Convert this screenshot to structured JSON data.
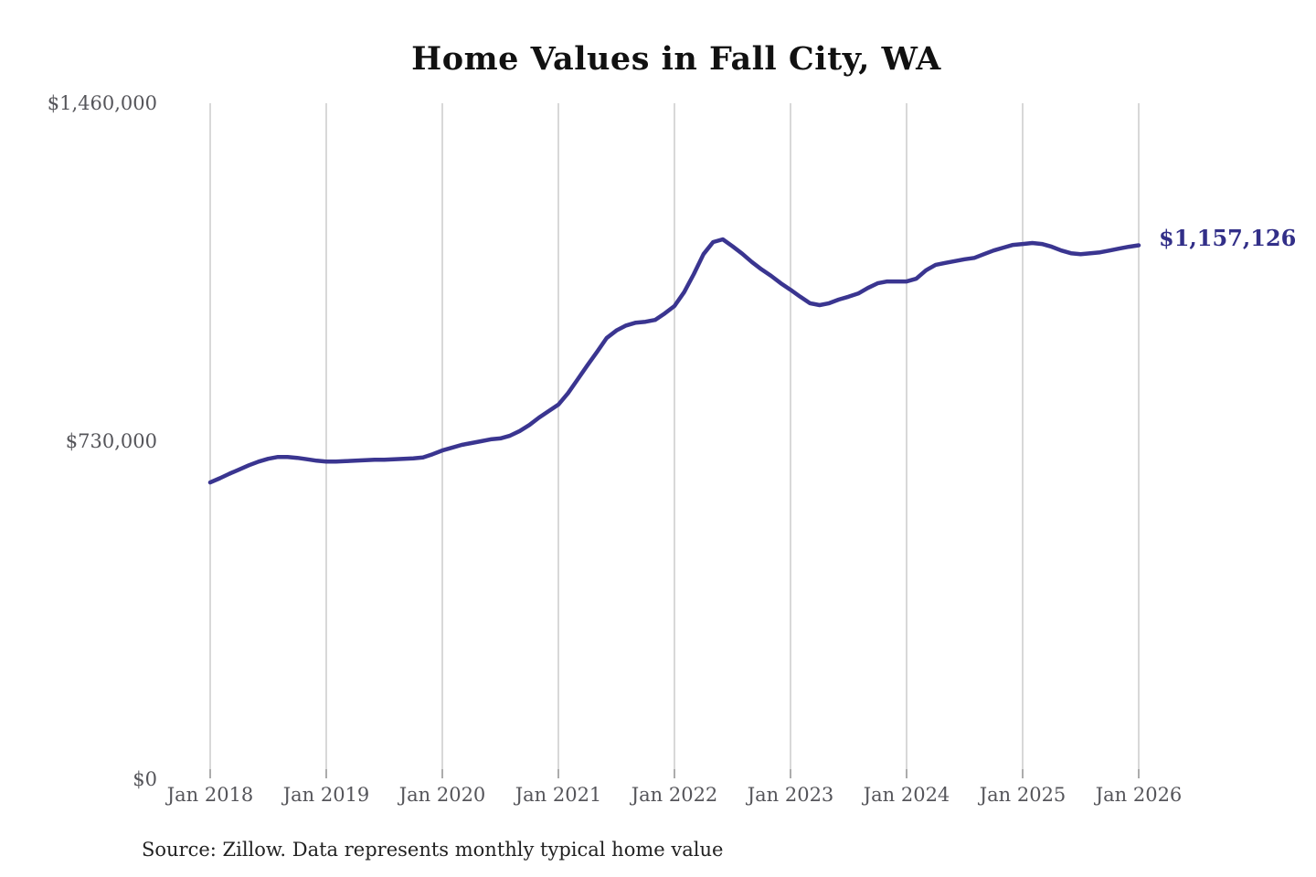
{
  "title": "Home Values in Fall City, WA",
  "source_note": "Source: Zillow. Data represents monthly typical home value",
  "end_label": "$1,157,126",
  "colors": {
    "background": "#ffffff",
    "line": "#3a3590",
    "end_label": "#322f88",
    "gridline": "#cccccc",
    "tick": "#999999",
    "axis_text": "#55555a",
    "title_text": "#111111",
    "source_text": "#222222"
  },
  "y_axis": {
    "ticks": [
      {
        "label": "$0",
        "value": 0
      },
      {
        "label": "$730,000",
        "value": 730000
      },
      {
        "label": "$1,460,000",
        "value": 1460000
      }
    ]
  },
  "x_axis": {
    "ticks": [
      {
        "label": "Jan 2018",
        "month_index": 0
      },
      {
        "label": "Jan 2019",
        "month_index": 12
      },
      {
        "label": "Jan 2020",
        "month_index": 24
      },
      {
        "label": "Jan 2021",
        "month_index": 36
      },
      {
        "label": "Jan 2022",
        "month_index": 48
      },
      {
        "label": "Jan 2023",
        "month_index": 60
      },
      {
        "label": "Jan 2024",
        "month_index": 72
      },
      {
        "label": "Jan 2025",
        "month_index": 84
      },
      {
        "label": "Jan 2026",
        "month_index": 96
      }
    ]
  },
  "chart_data": {
    "type": "line",
    "title": "Home Values in Fall City, WA",
    "unit": "USD",
    "frequency": "monthly",
    "start_month": "2018-01",
    "end_month": "2026-01",
    "ylim": [
      0,
      1460000
    ],
    "y_ticks": [
      0,
      730000,
      1460000
    ],
    "grid": "vertical-only",
    "legend": "none",
    "last_value": 1157126,
    "values": [
      645000,
      654000,
      664000,
      673000,
      682000,
      690000,
      696000,
      700000,
      700000,
      698000,
      695000,
      692000,
      690000,
      690000,
      691000,
      692000,
      693000,
      694000,
      694000,
      695000,
      696000,
      697000,
      699000,
      706000,
      714000,
      720000,
      726000,
      730000,
      734000,
      738000,
      740000,
      746000,
      756000,
      769000,
      785000,
      799000,
      813000,
      838000,
      868000,
      898000,
      927000,
      957000,
      973000,
      984000,
      990000,
      992000,
      996000,
      1010000,
      1026000,
      1056000,
      1095000,
      1138000,
      1164000,
      1170000,
      1155000,
      1139000,
      1121000,
      1105000,
      1091000,
      1075000,
      1061000,
      1046000,
      1032000,
      1028000,
      1032000,
      1040000,
      1046000,
      1053000,
      1065000,
      1075000,
      1079000,
      1079000,
      1079000,
      1085000,
      1103000,
      1115000,
      1119000,
      1123000,
      1127000,
      1130000,
      1138000,
      1146000,
      1152000,
      1158000,
      1160000,
      1162000,
      1160000,
      1154000,
      1146000,
      1140000,
      1138000,
      1140000,
      1142000,
      1146000,
      1150000,
      1154000,
      1157126
    ]
  }
}
